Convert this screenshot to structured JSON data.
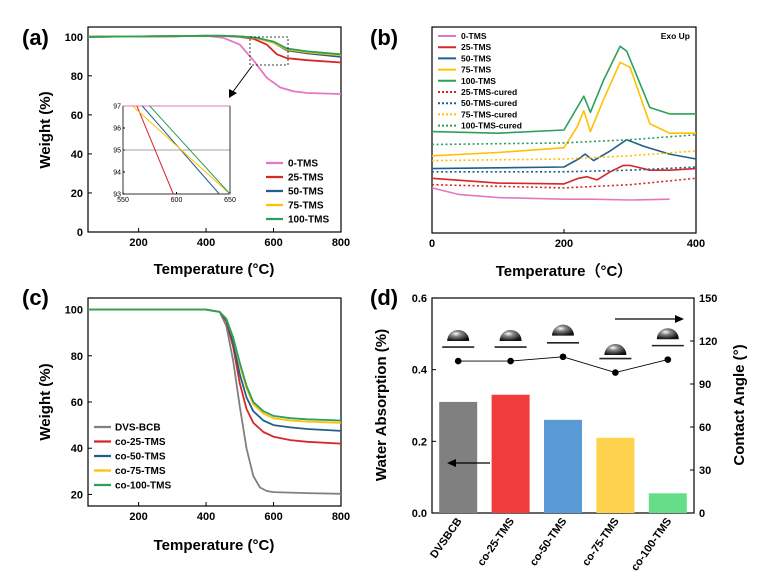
{
  "chart_data": [
    {
      "panel": "(a)",
      "type": "line",
      "xlabel": "Temperature (°C)",
      "ylabel": "Weight (%)",
      "xlim": [
        50,
        800
      ],
      "ylim": [
        0,
        105
      ],
      "xticks": [
        200,
        400,
        600,
        800
      ],
      "yticks": [
        0,
        20,
        40,
        60,
        80,
        100
      ],
      "legend_position": "bottom-right",
      "series": [
        {
          "name": "0-TMS",
          "color": "#e377c2",
          "x": [
            50,
            300,
            400,
            450,
            500,
            540,
            580,
            620,
            660,
            700,
            800
          ],
          "y": [
            100,
            100.3,
            100.5,
            99.5,
            96,
            88,
            79,
            74,
            72,
            71.2,
            70.7
          ]
        },
        {
          "name": "25-TMS",
          "color": "#d62728",
          "x": [
            50,
            300,
            400,
            450,
            500,
            540,
            580,
            610,
            640,
            700,
            800
          ],
          "y": [
            100,
            100.3,
            100.5,
            100.4,
            100,
            99,
            96,
            91,
            89,
            88,
            86.8
          ]
        },
        {
          "name": "50-TMS",
          "color": "#1f5f8b",
          "x": [
            50,
            300,
            400,
            450,
            500,
            550,
            600,
            640,
            700,
            800
          ],
          "y": [
            100,
            100.3,
            100.5,
            100.5,
            100.2,
            99.3,
            97,
            93,
            91.5,
            89.7
          ]
        },
        {
          "name": "75-TMS",
          "color": "#ffc000",
          "x": [
            50,
            300,
            400,
            450,
            500,
            550,
            600,
            640,
            700,
            800
          ],
          "y": [
            100,
            100.3,
            100.5,
            100.5,
            100.2,
            99.3,
            97,
            93.5,
            92,
            90.5
          ]
        },
        {
          "name": "100-TMS",
          "color": "#2ca05a",
          "x": [
            50,
            300,
            400,
            450,
            500,
            550,
            600,
            640,
            700,
            800
          ],
          "y": [
            100,
            100.3,
            100.5,
            100.5,
            100.2,
            99.5,
            97.5,
            94,
            92.5,
            91
          ]
        }
      ],
      "inset": {
        "type": "line",
        "xlim": [
          550,
          650
        ],
        "ylim": [
          93,
          97
        ],
        "xticks": [
          550,
          600,
          650
        ],
        "yticks": [
          93,
          94,
          95,
          96,
          97
        ],
        "reference_line_y": 95,
        "series": [
          {
            "name": "0-TMS",
            "color": "#e377c2",
            "x": [
              550,
              650
            ],
            "y": [
              97,
              97
            ]
          },
          {
            "name": "25-TMS",
            "color": "#d62728",
            "x": [
              563,
              597
            ],
            "y": [
              97,
              93
            ]
          },
          {
            "name": "50-TMS",
            "color": "#1f5f8b",
            "x": [
              568,
              640
            ],
            "y": [
              97,
              93
            ]
          },
          {
            "name": "75-TMS",
            "color": "#ffc000",
            "x": [
              559,
              650
            ],
            "y": [
              97,
              93
            ]
          },
          {
            "name": "100-TMS",
            "color": "#2ca05a",
            "x": [
              575,
              650
            ],
            "y": [
              97,
              93
            ]
          }
        ]
      }
    },
    {
      "panel": "(b)",
      "type": "line",
      "xlabel": "Temperature（°C）",
      "ylabel": "",
      "annotation": "Exo Up",
      "xlim": [
        0,
        400
      ],
      "xticks": [
        0,
        200,
        400
      ],
      "legend_position": "top-left",
      "series": [
        {
          "name": "0-TMS",
          "color": "#e377c2",
          "style": "solid",
          "x": [
            0,
            40,
            100,
            200,
            240,
            300,
            360
          ],
          "y": [
            10,
            6,
            4,
            3,
            3,
            2.5,
            3
          ]
        },
        {
          "name": "25-TMS",
          "color": "#d62728",
          "style": "solid",
          "x": [
            0,
            100,
            200,
            222,
            235,
            250,
            270,
            290,
            300,
            330,
            360,
            400
          ],
          "y": [
            16,
            13,
            12.5,
            16,
            17,
            15,
            20,
            24,
            24,
            21,
            21,
            22
          ]
        },
        {
          "name": "50-TMS",
          "color": "#1f5f8b",
          "style": "solid",
          "x": [
            0,
            100,
            200,
            222,
            232,
            245,
            270,
            295,
            320,
            360,
            400
          ],
          "y": [
            22,
            22.5,
            23,
            28,
            31,
            27,
            33,
            40,
            36,
            31,
            28
          ]
        },
        {
          "name": "75-TMS",
          "color": "#ffc000",
          "style": "solid",
          "x": [
            0,
            100,
            200,
            220,
            230,
            240,
            260,
            285,
            300,
            330,
            360,
            400
          ],
          "y": [
            30,
            32,
            35,
            48,
            58,
            45,
            65,
            88,
            85,
            50,
            44,
            44
          ]
        },
        {
          "name": "100-TMS",
          "color": "#2ca05a",
          "style": "solid",
          "x": [
            0,
            100,
            200,
            220,
            230,
            240,
            260,
            285,
            295,
            330,
            360,
            400
          ],
          "y": [
            45,
            44,
            46,
            60,
            67,
            57,
            77,
            98,
            95,
            60,
            56,
            56
          ]
        },
        {
          "name": "25-TMS-cured",
          "color": "#d62728",
          "style": "dotted",
          "x": [
            0,
            200,
            300,
            400
          ],
          "y": [
            12,
            10,
            12,
            16
          ]
        },
        {
          "name": "50-TMS-cured",
          "color": "#1f5f8b",
          "style": "dotted",
          "x": [
            0,
            200,
            300,
            400
          ],
          "y": [
            20,
            20,
            21,
            23
          ]
        },
        {
          "name": "75-TMS-cured",
          "color": "#ffc000",
          "style": "dotted",
          "x": [
            0,
            200,
            300,
            400
          ],
          "y": [
            27,
            28,
            30,
            33
          ]
        },
        {
          "name": "100-TMS-cured",
          "color": "#2ca05a",
          "style": "dotted",
          "x": [
            0,
            200,
            300,
            400
          ],
          "y": [
            37,
            38,
            40,
            43
          ]
        }
      ]
    },
    {
      "panel": "(c)",
      "type": "line",
      "xlabel": "Temperature (°C)",
      "ylabel": "Weight (%)",
      "xlim": [
        50,
        800
      ],
      "ylim": [
        15,
        105
      ],
      "xticks": [
        200,
        400,
        600,
        800
      ],
      "yticks": [
        20,
        40,
        60,
        80,
        100
      ],
      "legend_position": "bottom-left",
      "series": [
        {
          "name": "DVS-BCB",
          "color": "#808080",
          "x": [
            50,
            400,
            440,
            460,
            480,
            500,
            520,
            540,
            560,
            580,
            600,
            700,
            800
          ],
          "y": [
            100,
            100,
            99,
            93,
            78,
            58,
            40,
            28,
            23,
            21.5,
            21,
            20.6,
            20.3
          ]
        },
        {
          "name": "co-25-TMS",
          "color": "#d62728",
          "x": [
            50,
            400,
            440,
            460,
            480,
            500,
            520,
            540,
            570,
            600,
            650,
            700,
            800
          ],
          "y": [
            100,
            100,
            99,
            95,
            84,
            68,
            57,
            51,
            47,
            45,
            43.5,
            42.8,
            42
          ]
        },
        {
          "name": "co-50-TMS",
          "color": "#1f5f8b",
          "x": [
            50,
            400,
            440,
            460,
            480,
            500,
            520,
            540,
            570,
            600,
            650,
            700,
            800
          ],
          "y": [
            100,
            100,
            99,
            95.5,
            86,
            72,
            62,
            56,
            52,
            50,
            49,
            48.3,
            47.5
          ]
        },
        {
          "name": "co-75-TMS",
          "color": "#ffc000",
          "x": [
            50,
            400,
            440,
            460,
            480,
            500,
            520,
            540,
            570,
            600,
            650,
            700,
            800
          ],
          "y": [
            100,
            100,
            99,
            96,
            88,
            76,
            66,
            59,
            55,
            53,
            52,
            51.5,
            51
          ]
        },
        {
          "name": "co-100-TMS",
          "color": "#2ca05a",
          "x": [
            50,
            400,
            440,
            460,
            480,
            500,
            520,
            540,
            570,
            600,
            650,
            700,
            800
          ],
          "y": [
            100,
            100,
            99,
            96,
            88,
            77,
            67,
            60,
            56,
            54,
            53,
            52.5,
            52
          ]
        }
      ]
    },
    {
      "panel": "(d)",
      "type": "bar",
      "categories": [
        "DVSBCB",
        "co-25-TMS",
        "co-50-TMS",
        "co-75-TMS",
        "co-100-TMS"
      ],
      "ylabel": "Water Absorption (%)",
      "ylim": [
        0,
        0.6
      ],
      "yticks": [
        0.0,
        0.2,
        0.4,
        0.6
      ],
      "series": [
        {
          "name": "Water Absorption (%)",
          "values": [
            0.31,
            0.33,
            0.26,
            0.21,
            0.055
          ],
          "colors": [
            "#808080",
            "#f03c3c",
            "#5b9bd5",
            "#ffd24d",
            "#66dd88"
          ]
        }
      ],
      "secondary_axis": {
        "ylabel": "Contact Angle (°)",
        "ylim": [
          0,
          150
        ],
        "yticks": [
          0,
          30,
          60,
          90,
          120,
          150
        ],
        "series": [
          {
            "name": "Contact Angle (°)",
            "values": [
              106,
              106,
              109,
              98,
              107
            ],
            "color": "#000000"
          }
        ]
      }
    }
  ]
}
